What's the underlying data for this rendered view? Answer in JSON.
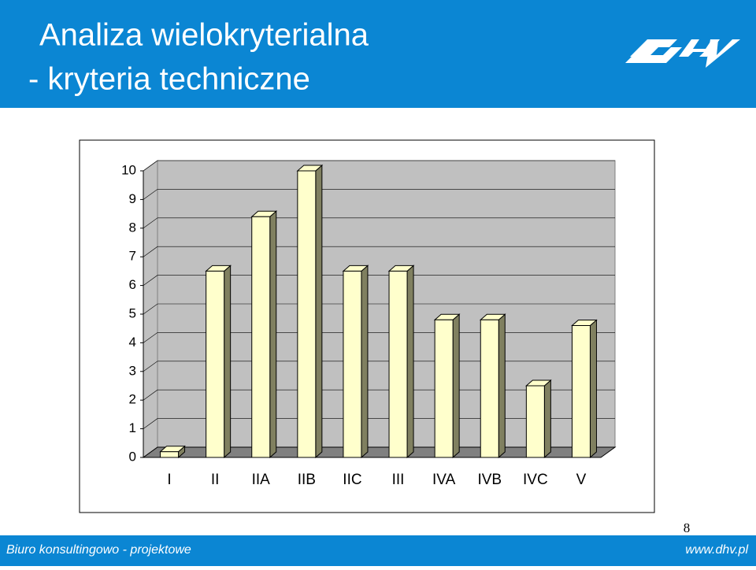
{
  "slide": {
    "title_lines": [
      "Analiza wielokryterialna",
      "- kryteria techniczne"
    ],
    "footer_left": "Biuro konsultingowo - projektowe",
    "footer_right": "www.dhv.pl",
    "page_number": 8
  },
  "chart_data": {
    "type": "bar3d",
    "categories": [
      "I",
      "II",
      "IIA",
      "IIB",
      "IIC",
      "III",
      "IVA",
      "IVB",
      "IVC",
      "V"
    ],
    "values": [
      0.2,
      6.5,
      8.4,
      10,
      6.5,
      6.5,
      4.8,
      4.8,
      2.5,
      4.6
    ],
    "color": "#ffffcc",
    "ylim": [
      0,
      10
    ],
    "yticks": [
      0,
      1,
      2,
      3,
      4,
      5,
      6,
      7,
      8,
      9,
      10
    ],
    "grid": true
  }
}
